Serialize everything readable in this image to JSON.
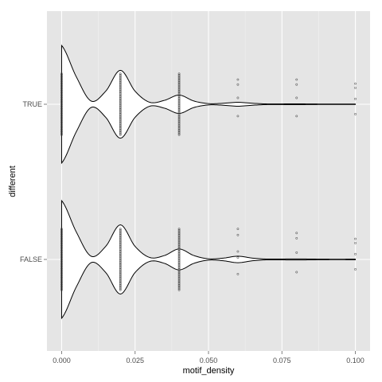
{
  "chart_data": {
    "type": "violin",
    "orientation": "horizontal",
    "xlabel": "motif_density",
    "ylabel": "different",
    "categories": [
      "FALSE",
      "TRUE"
    ],
    "x_ticks": [
      "0.000",
      "0.025",
      "0.050",
      "0.075",
      "0.100"
    ],
    "x_tick_values": [
      0,
      0.025,
      0.05,
      0.075,
      0.1
    ],
    "xlim": [
      -0.005,
      0.105
    ],
    "grid": true,
    "style": {
      "panel_background": "#e5e5e5",
      "grid_color": "#ffffff",
      "violin_fill": "#ffffff",
      "violin_outline": "#000000",
      "point_color": "#333333"
    },
    "series": [
      {
        "category": "FALSE",
        "density_profile": [
          {
            "x": 0.0,
            "halfwidth": 0.9
          },
          {
            "x": 0.005,
            "halfwidth": 0.42
          },
          {
            "x": 0.01,
            "halfwidth": 0.05
          },
          {
            "x": 0.015,
            "halfwidth": 0.2
          },
          {
            "x": 0.02,
            "halfwidth": 0.53
          },
          {
            "x": 0.025,
            "halfwidth": 0.2
          },
          {
            "x": 0.03,
            "halfwidth": 0.03
          },
          {
            "x": 0.035,
            "halfwidth": 0.06
          },
          {
            "x": 0.04,
            "halfwidth": 0.16
          },
          {
            "x": 0.045,
            "halfwidth": 0.06
          },
          {
            "x": 0.05,
            "halfwidth": 0.01
          },
          {
            "x": 0.055,
            "halfwidth": 0.02
          },
          {
            "x": 0.06,
            "halfwidth": 0.05
          },
          {
            "x": 0.065,
            "halfwidth": 0.02
          },
          {
            "x": 0.07,
            "halfwidth": 0.006
          },
          {
            "x": 0.08,
            "halfwidth": 0.008
          },
          {
            "x": 0.09,
            "halfwidth": 0.004
          },
          {
            "x": 0.1,
            "halfwidth": 0.004
          }
        ],
        "point_columns": [
          {
            "x": 0.0,
            "spread": 0.52
          },
          {
            "x": 0.02,
            "spread": 0.52
          },
          {
            "x": 0.04,
            "spread": 0.52
          },
          {
            "x": 0.06,
            "spread": 0.52
          },
          {
            "x": 0.08,
            "spread": 0.45
          },
          {
            "x": 0.1,
            "spread": 0.35
          }
        ]
      },
      {
        "category": "TRUE",
        "density_profile": [
          {
            "x": 0.0,
            "halfwidth": 0.9
          },
          {
            "x": 0.005,
            "halfwidth": 0.42
          },
          {
            "x": 0.01,
            "halfwidth": 0.05
          },
          {
            "x": 0.015,
            "halfwidth": 0.2
          },
          {
            "x": 0.02,
            "halfwidth": 0.52
          },
          {
            "x": 0.025,
            "halfwidth": 0.2
          },
          {
            "x": 0.03,
            "halfwidth": 0.03
          },
          {
            "x": 0.035,
            "halfwidth": 0.06
          },
          {
            "x": 0.04,
            "halfwidth": 0.14
          },
          {
            "x": 0.045,
            "halfwidth": 0.05
          },
          {
            "x": 0.05,
            "halfwidth": 0.01
          },
          {
            "x": 0.055,
            "halfwidth": 0.015
          },
          {
            "x": 0.06,
            "halfwidth": 0.03
          },
          {
            "x": 0.065,
            "halfwidth": 0.015
          },
          {
            "x": 0.07,
            "halfwidth": 0.005
          },
          {
            "x": 0.08,
            "halfwidth": 0.006
          },
          {
            "x": 0.09,
            "halfwidth": 0.003
          },
          {
            "x": 0.1,
            "halfwidth": 0.003
          }
        ],
        "point_columns": [
          {
            "x": 0.0,
            "spread": 0.52
          },
          {
            "x": 0.02,
            "spread": 0.52
          },
          {
            "x": 0.04,
            "spread": 0.52
          },
          {
            "x": 0.06,
            "spread": 0.42
          },
          {
            "x": 0.08,
            "spread": 0.42
          },
          {
            "x": 0.1,
            "spread": 0.35
          }
        ]
      }
    ]
  }
}
